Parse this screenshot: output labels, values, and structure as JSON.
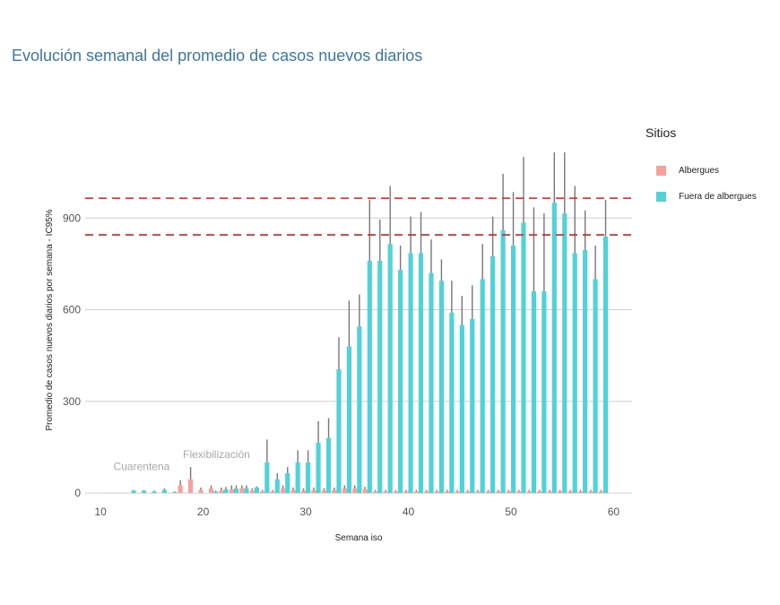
{
  "chart_data": {
    "type": "bar",
    "title": "Evolución semanal del promedio de casos nuevos diarios",
    "xlabel": "Semana iso",
    "ylabel": "Promedio de casos nuevos diarios por semana - IC95%",
    "xlim": [
      8.5,
      61.8
    ],
    "ylim": [
      -35,
      1115
    ],
    "x_ticks": [
      10,
      20,
      30,
      40,
      50,
      60
    ],
    "y_ticks": [
      0,
      300,
      600,
      900
    ],
    "grid": true,
    "legend": {
      "title": "Sitios",
      "position": "right",
      "entries": [
        {
          "name": "Albergues",
          "color": "#f8a09a"
        },
        {
          "name": "Fuera de albergues",
          "color": "#4fd2d8"
        }
      ]
    },
    "reference_lines": [
      {
        "y": 965,
        "color": "#e41a1c",
        "style": "dashed"
      },
      {
        "y": 845,
        "color": "#e41a1c",
        "style": "dashed"
      }
    ],
    "annotations": [
      {
        "text": "Cuarentena",
        "x": 14,
        "y": 75
      },
      {
        "text": "Flexibilización",
        "x": 21.3,
        "y": 115
      }
    ],
    "series": [
      {
        "name": "Albergues",
        "color": "#f8a09a",
        "x": [
          11,
          12,
          13,
          14,
          15,
          16,
          17,
          18,
          19,
          20,
          21,
          22,
          23,
          24,
          25,
          26,
          27,
          28,
          29,
          30,
          31,
          32,
          33,
          34,
          35,
          36,
          37,
          38,
          39,
          40,
          41,
          42,
          43,
          44,
          45,
          46,
          47,
          48,
          49,
          50,
          51,
          52,
          53,
          54,
          55,
          56,
          57,
          58,
          59
        ],
        "values": [
          0,
          0,
          0,
          0,
          0,
          0,
          0,
          25,
          45,
          10,
          15,
          8,
          12,
          15,
          8,
          5,
          5,
          15,
          10,
          8,
          10,
          8,
          10,
          15,
          15,
          12,
          5,
          5,
          5,
          5,
          5,
          5,
          5,
          5,
          5,
          5,
          5,
          5,
          5,
          5,
          5,
          5,
          5,
          5,
          5,
          5,
          5,
          5,
          5
        ],
        "ci_upper": [
          0,
          0,
          0,
          0,
          0,
          0,
          0,
          42,
          85,
          18,
          25,
          18,
          25,
          25,
          15,
          10,
          10,
          25,
          18,
          15,
          18,
          15,
          18,
          25,
          25,
          20,
          10,
          10,
          10,
          10,
          10,
          10,
          10,
          10,
          10,
          10,
          10,
          10,
          10,
          10,
          10,
          10,
          10,
          10,
          10,
          10,
          10,
          10,
          10
        ]
      },
      {
        "name": "Fuera de albergues",
        "color": "#4fd2d8",
        "x": [
          11,
          12,
          13,
          14,
          15,
          16,
          17,
          18,
          19,
          20,
          21,
          22,
          23,
          24,
          25,
          26,
          27,
          28,
          29,
          30,
          31,
          32,
          33,
          34,
          35,
          36,
          37,
          38,
          39,
          40,
          41,
          42,
          43,
          44,
          45,
          46,
          47,
          48,
          49,
          50,
          51,
          52,
          53,
          54,
          55,
          56,
          57,
          58,
          59
        ],
        "values": [
          0,
          0,
          8,
          8,
          5,
          10,
          3,
          0,
          0,
          0,
          5,
          12,
          15,
          15,
          18,
          100,
          45,
          65,
          100,
          100,
          165,
          180,
          405,
          480,
          545,
          760,
          760,
          815,
          730,
          785,
          785,
          720,
          695,
          590,
          550,
          570,
          700,
          775,
          860,
          810,
          885,
          660,
          660,
          950,
          915,
          785,
          795,
          700,
          840
        ],
        "ci_upper": [
          0,
          0,
          10,
          10,
          8,
          15,
          5,
          0,
          0,
          0,
          8,
          20,
          25,
          25,
          22,
          175,
          65,
          85,
          140,
          140,
          235,
          245,
          510,
          630,
          650,
          960,
          895,
          1005,
          810,
          905,
          920,
          830,
          765,
          695,
          645,
          680,
          815,
          905,
          1045,
          985,
          1100,
          935,
          915,
          1115,
          1115,
          1005,
          925,
          810,
          960
        ]
      }
    ]
  }
}
